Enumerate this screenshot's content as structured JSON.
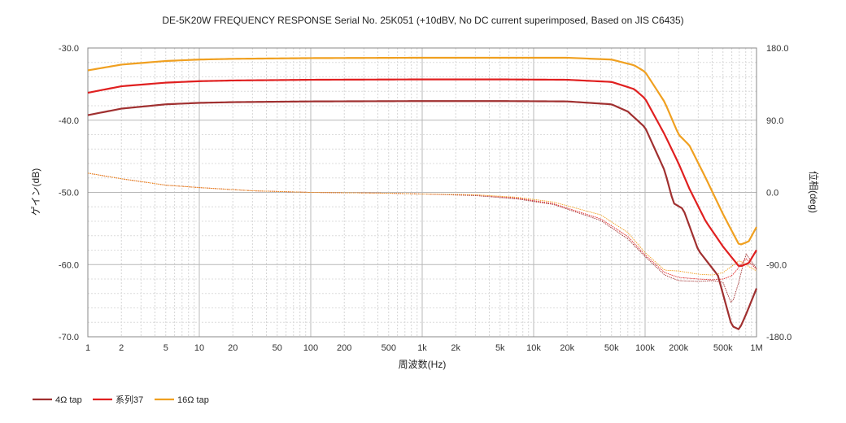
{
  "chart_data": {
    "type": "line",
    "title": "DE-5K20W FREQUENCY RESPONSE Serial No. 25K051 (+10dBV,  No DC current superimposed,  Based on JIS C6435)",
    "xlabel": "周波数(Hz)",
    "ylabel": "ゲイン(dB)",
    "y2label": "位相(deg)",
    "xscale": "log",
    "xlim": [
      1,
      1000000
    ],
    "ylim": [
      -70,
      -30
    ],
    "y2lim": [
      -180,
      180
    ],
    "grid": true,
    "legend_position": "bottom-left",
    "x_ticks": [
      {
        "v": 1,
        "label": "1"
      },
      {
        "v": 2,
        "label": "2"
      },
      {
        "v": 5,
        "label": "5"
      },
      {
        "v": 10,
        "label": "10"
      },
      {
        "v": 20,
        "label": "20"
      },
      {
        "v": 50,
        "label": "50"
      },
      {
        "v": 100,
        "label": "100"
      },
      {
        "v": 200,
        "label": "200"
      },
      {
        "v": 500,
        "label": "500"
      },
      {
        "v": 1000,
        "label": "1k"
      },
      {
        "v": 2000,
        "label": "2k"
      },
      {
        "v": 5000,
        "label": "5k"
      },
      {
        "v": 10000,
        "label": "10k"
      },
      {
        "v": 20000,
        "label": "20k"
      },
      {
        "v": 50000,
        "label": "50k"
      },
      {
        "v": 100000,
        "label": "100k"
      },
      {
        "v": 200000,
        "label": "200k"
      },
      {
        "v": 500000,
        "label": "500k"
      },
      {
        "v": 1000000,
        "label": "1M"
      }
    ],
    "y_ticks": [
      {
        "v": -30,
        "label": "-30.0"
      },
      {
        "v": -40,
        "label": "-40.0"
      },
      {
        "v": -50,
        "label": "-50.0"
      },
      {
        "v": -60,
        "label": "-60.0"
      },
      {
        "v": -70,
        "label": "-70.0"
      }
    ],
    "y2_ticks": [
      {
        "v": 180,
        "label": "180.0"
      },
      {
        "v": 90,
        "label": "90.0"
      },
      {
        "v": 0,
        "label": "0.0"
      },
      {
        "v": -90,
        "label": "-90.0"
      },
      {
        "v": -180,
        "label": "-180.0"
      }
    ],
    "series": [
      {
        "name": "4Ω tap",
        "color": "#a03030",
        "gain": [
          [
            1,
            -39.3
          ],
          [
            2,
            -38.4
          ],
          [
            5,
            -37.8
          ],
          [
            10,
            -37.6
          ],
          [
            20,
            -37.5
          ],
          [
            100,
            -37.4
          ],
          [
            1000,
            -37.35
          ],
          [
            5000,
            -37.35
          ],
          [
            20000,
            -37.4
          ],
          [
            50000,
            -37.8
          ],
          [
            70000,
            -38.8
          ],
          [
            100000,
            -41
          ],
          [
            150000,
            -47
          ],
          [
            180000,
            -51.5
          ],
          [
            220000,
            -52.3
          ],
          [
            300000,
            -58
          ],
          [
            450000,
            -61.5
          ],
          [
            600000,
            -68.5
          ],
          [
            700000,
            -69
          ],
          [
            800000,
            -67
          ],
          [
            1000000,
            -63.3
          ]
        ],
        "phase": [
          [
            1,
            24
          ],
          [
            2,
            17
          ],
          [
            5,
            9
          ],
          [
            10,
            6
          ],
          [
            30,
            2
          ],
          [
            100,
            0
          ],
          [
            500,
            -1
          ],
          [
            1000,
            -2
          ],
          [
            3000,
            -4
          ],
          [
            7000,
            -8
          ],
          [
            15000,
            -15
          ],
          [
            40000,
            -35
          ],
          [
            70000,
            -58
          ],
          [
            100000,
            -80
          ],
          [
            150000,
            -103
          ],
          [
            200000,
            -110
          ],
          [
            300000,
            -111
          ],
          [
            400000,
            -110
          ],
          [
            500000,
            -112
          ],
          [
            600000,
            -140
          ],
          [
            700000,
            -110
          ],
          [
            800000,
            -76
          ],
          [
            1000000,
            -95
          ]
        ]
      },
      {
        "name": "系列37",
        "color": "#e02020",
        "gain": [
          [
            1,
            -36.2
          ],
          [
            2,
            -35.3
          ],
          [
            5,
            -34.8
          ],
          [
            10,
            -34.6
          ],
          [
            20,
            -34.5
          ],
          [
            100,
            -34.4
          ],
          [
            1000,
            -34.35
          ],
          [
            5000,
            -34.35
          ],
          [
            20000,
            -34.4
          ],
          [
            50000,
            -34.7
          ],
          [
            80000,
            -35.7
          ],
          [
            100000,
            -37
          ],
          [
            150000,
            -42
          ],
          [
            200000,
            -46
          ],
          [
            250000,
            -49.5
          ],
          [
            350000,
            -54
          ],
          [
            500000,
            -57.5
          ],
          [
            700000,
            -60.3
          ],
          [
            850000,
            -59.8
          ],
          [
            1000000,
            -58
          ]
        ],
        "phase": [
          [
            1,
            24
          ],
          [
            2,
            17
          ],
          [
            5,
            9
          ],
          [
            10,
            6
          ],
          [
            30,
            2
          ],
          [
            100,
            0
          ],
          [
            500,
            -1
          ],
          [
            1000,
            -2
          ],
          [
            3000,
            -3
          ],
          [
            7000,
            -7
          ],
          [
            15000,
            -14
          ],
          [
            40000,
            -33
          ],
          [
            70000,
            -55
          ],
          [
            100000,
            -78
          ],
          [
            150000,
            -100
          ],
          [
            200000,
            -106
          ],
          [
            300000,
            -108
          ],
          [
            400000,
            -109
          ],
          [
            500000,
            -108
          ],
          [
            600000,
            -104
          ],
          [
            700000,
            -93
          ],
          [
            800000,
            -82
          ],
          [
            1000000,
            -96
          ]
        ]
      },
      {
        "name": "16Ω tap",
        "color": "#f0a020",
        "gain": [
          [
            1,
            -33.1
          ],
          [
            2,
            -32.3
          ],
          [
            5,
            -31.8
          ],
          [
            10,
            -31.6
          ],
          [
            20,
            -31.5
          ],
          [
            100,
            -31.4
          ],
          [
            1000,
            -31.35
          ],
          [
            5000,
            -31.35
          ],
          [
            20000,
            -31.35
          ],
          [
            50000,
            -31.6
          ],
          [
            80000,
            -32.4
          ],
          [
            100000,
            -33.3
          ],
          [
            150000,
            -37.5
          ],
          [
            200000,
            -42
          ],
          [
            250000,
            -43.5
          ],
          [
            350000,
            -48
          ],
          [
            500000,
            -53
          ],
          [
            700000,
            -57.3
          ],
          [
            850000,
            -56.8
          ],
          [
            1000000,
            -54.8
          ]
        ],
        "phase": [
          [
            1,
            24
          ],
          [
            2,
            17
          ],
          [
            5,
            9
          ],
          [
            10,
            6
          ],
          [
            30,
            2
          ],
          [
            100,
            0
          ],
          [
            500,
            -1
          ],
          [
            1000,
            -2
          ],
          [
            3000,
            -3
          ],
          [
            7000,
            -6
          ],
          [
            15000,
            -12
          ],
          [
            40000,
            -28
          ],
          [
            70000,
            -50
          ],
          [
            100000,
            -75
          ],
          [
            150000,
            -97
          ],
          [
            200000,
            -98
          ],
          [
            300000,
            -102
          ],
          [
            400000,
            -103
          ],
          [
            500000,
            -100
          ],
          [
            600000,
            -92
          ],
          [
            700000,
            -85
          ],
          [
            800000,
            -90
          ],
          [
            1000000,
            -98
          ]
        ]
      }
    ]
  }
}
